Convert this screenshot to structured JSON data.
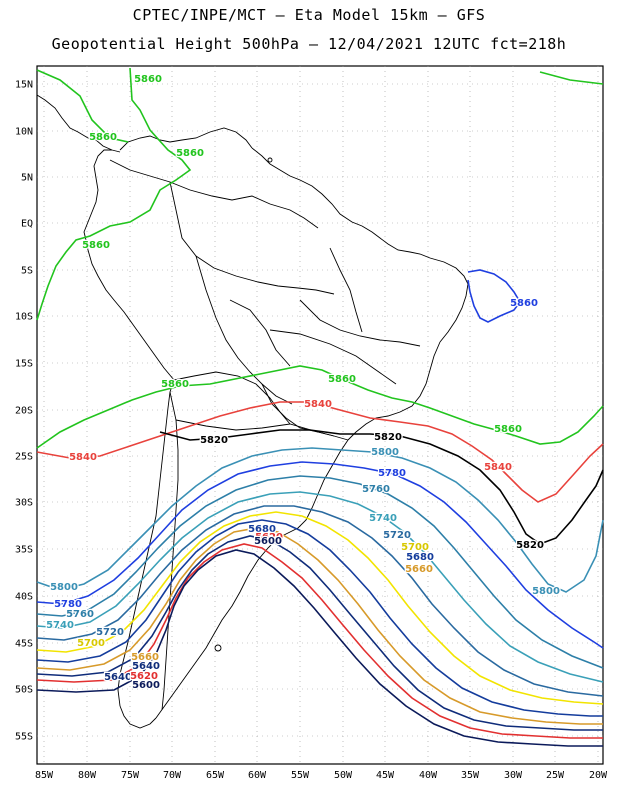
{
  "header": {
    "line1": "CPTEC/INPE/MCT –  Eta Model 15km – GFS",
    "line2": "Geopotential Height 500hPa – 12/04/2021 12UTC fct=218h"
  },
  "axes": {
    "lat_labels": [
      "15N",
      "10N",
      "5N",
      "EQ",
      "5S",
      "10S",
      "15S",
      "20S",
      "25S",
      "30S",
      "35S",
      "40S",
      "45S",
      "50S",
      "55S"
    ],
    "lon_labels": [
      "85W",
      "80W",
      "75W",
      "70W",
      "65W",
      "60W",
      "55W",
      "50W",
      "45W",
      "40W",
      "35W",
      "30W",
      "25W",
      "20W"
    ]
  },
  "contours": [
    {
      "level": "5860",
      "color": "#22c41e"
    },
    {
      "level": "5840",
      "color": "#e8423c"
    },
    {
      "level": "5820",
      "color": "#000000"
    },
    {
      "level": "5800",
      "color": "#3a90b5"
    },
    {
      "level": "5780",
      "color": "#1f3fe0"
    },
    {
      "level": "5760",
      "color": "#2d7fa8"
    },
    {
      "level": "5740",
      "color": "#3aa0b8"
    },
    {
      "level": "5720",
      "color": "#2a6aa0"
    },
    {
      "level": "5700",
      "color": "#f2e400"
    },
    {
      "level": "5680",
      "color": "#143c9c"
    },
    {
      "level": "5660",
      "color": "#d79a2a"
    },
    {
      "level": "5640",
      "color": "#0f2c7a"
    },
    {
      "level": "5620",
      "color": "#e23030"
    },
    {
      "level": "5600",
      "color": "#0b1a5a"
    }
  ],
  "contour_labels": [
    {
      "text": "5860",
      "color": "#22c41e"
    },
    {
      "text": "5860",
      "color": "#22c41e"
    },
    {
      "text": "5860",
      "color": "#22c41e"
    },
    {
      "text": "5860",
      "color": "#22c41e"
    },
    {
      "text": "5860",
      "color": "#22c41e"
    },
    {
      "text": "5860",
      "color": "#22c41e"
    },
    {
      "text": "5860",
      "color": "#22c41e"
    },
    {
      "text": "5860",
      "color": "#1f3fe0"
    },
    {
      "text": "5840",
      "color": "#e8423c"
    },
    {
      "text": "5840",
      "color": "#e8423c"
    },
    {
      "text": "5840",
      "color": "#e8423c"
    },
    {
      "text": "5820",
      "color": "#000000"
    },
    {
      "text": "5820",
      "color": "#000000"
    },
    {
      "text": "5820",
      "color": "#000000"
    },
    {
      "text": "5800",
      "color": "#3a90b5"
    },
    {
      "text": "5800",
      "color": "#3a90b5"
    },
    {
      "text": "5800",
      "color": "#3a90b5"
    },
    {
      "text": "5780",
      "color": "#1f3fe0"
    },
    {
      "text": "5780",
      "color": "#1f3fe0"
    },
    {
      "text": "5760",
      "color": "#2d7fa8"
    },
    {
      "text": "5760",
      "color": "#2d7fa8"
    },
    {
      "text": "5740",
      "color": "#3aa0b8"
    },
    {
      "text": "5740",
      "color": "#3aa0b8"
    },
    {
      "text": "5720",
      "color": "#2a6aa0"
    },
    {
      "text": "5720",
      "color": "#2a6aa0"
    },
    {
      "text": "5700",
      "color": "#d8c800"
    },
    {
      "text": "5700",
      "color": "#d8c800"
    },
    {
      "text": "5680",
      "color": "#143c9c"
    },
    {
      "text": "5680",
      "color": "#143c9c"
    },
    {
      "text": "5660",
      "color": "#d79a2a"
    },
    {
      "text": "5660",
      "color": "#d79a2a"
    },
    {
      "text": "5640",
      "color": "#0f2c7a"
    },
    {
      "text": "5640",
      "color": "#0f2c7a"
    },
    {
      "text": "5620",
      "color": "#e23030"
    },
    {
      "text": "5620",
      "color": "#e23030"
    },
    {
      "text": "5600",
      "color": "#0b1a5a"
    },
    {
      "text": "5600",
      "color": "#0b1a5a"
    }
  ]
}
